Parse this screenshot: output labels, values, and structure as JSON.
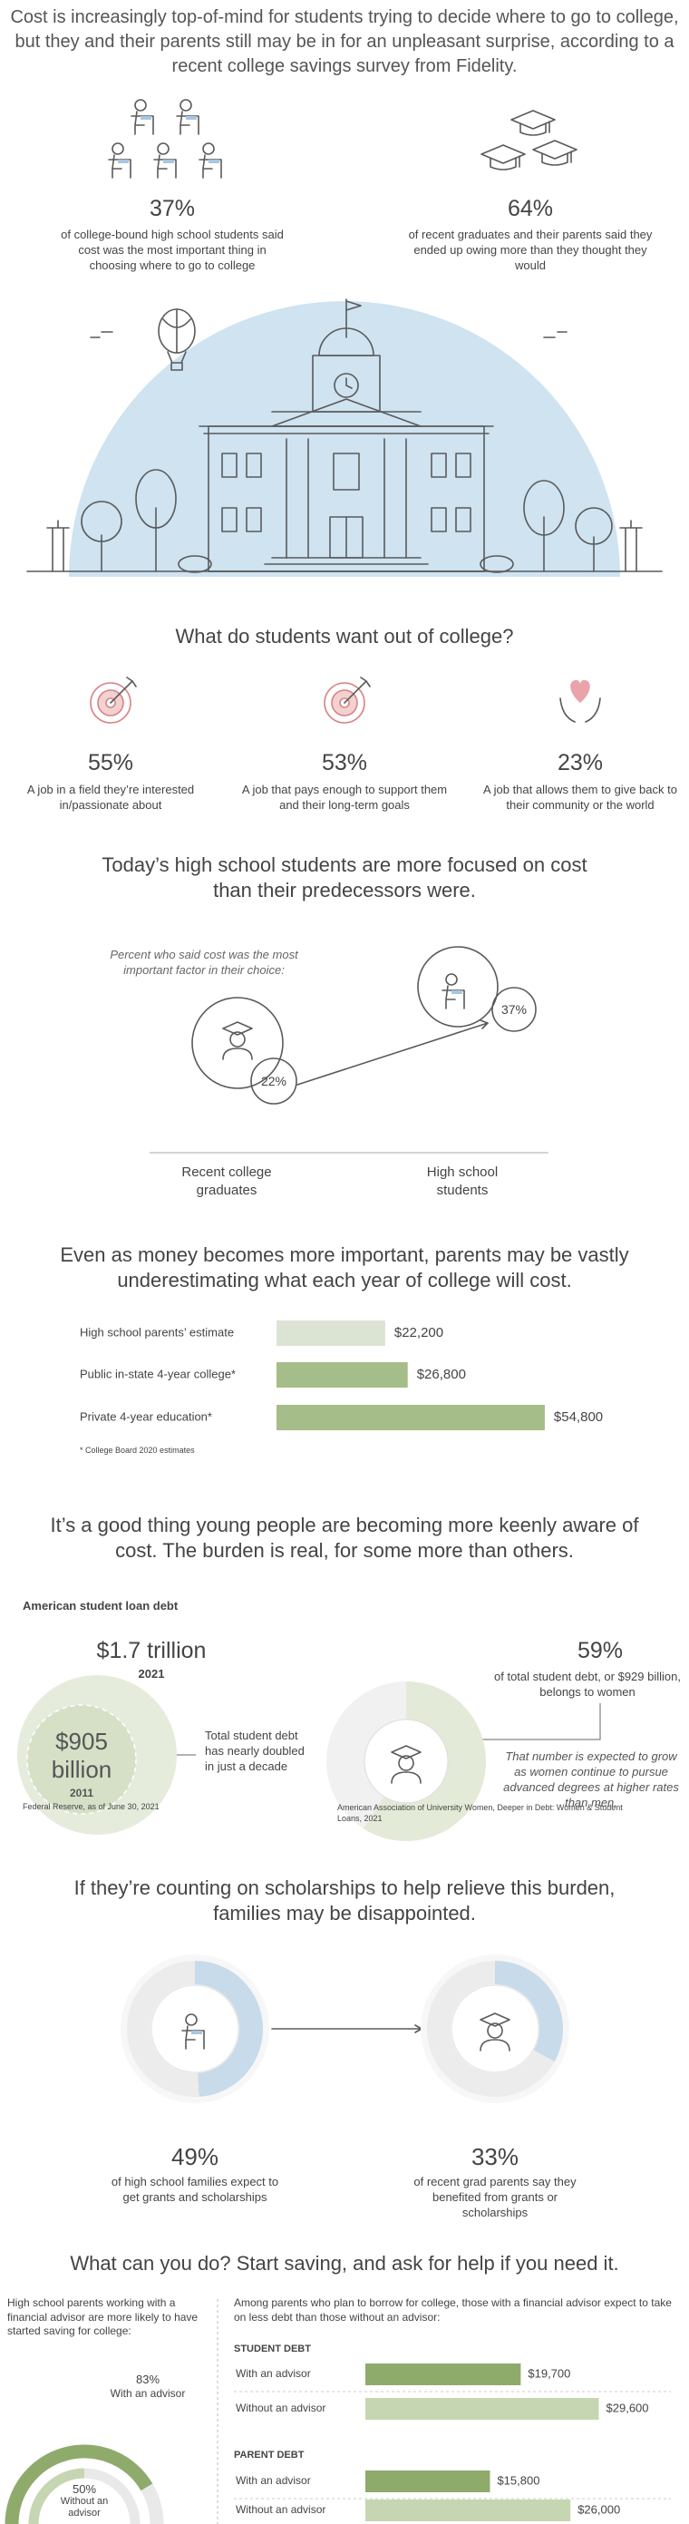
{
  "intro": "Cost is increasingly top-of-mind for students trying to decide where to go to college, but they and their parents still may be in for an unpleasant surprise, according to a recent college savings survey from Fidelity.",
  "top_stats": [
    {
      "value": "37%",
      "text": "of college-bound high school students said cost was the most important thing in choosing where to go to college"
    },
    {
      "value": "64%",
      "text": "of recent graduates and their parents said they ended up owing more than they thought they would"
    }
  ],
  "wants": {
    "title": "What do students want out of college?",
    "items": [
      {
        "value": "55%",
        "text": "A job in a field they’re interested in/passionate about"
      },
      {
        "value": "53%",
        "text": "A job that pays enough to support them and their long-term goals"
      },
      {
        "value": "23%",
        "text": "A job that allows them to give back to their community or the world"
      }
    ]
  },
  "focus": {
    "title": "Today’s high school students are more focused on cost than their predecessors were.",
    "note": "Percent who said cost was the most important factor in their choice:",
    "groups": [
      {
        "label": "Recent college graduates",
        "value": "22%"
      },
      {
        "label": "High school students",
        "value": "37%"
      }
    ]
  },
  "cost": {
    "type": "bar",
    "title": "Even as money becomes more important, parents may be vastly underestimating what each year of college will cost.",
    "categories": [
      "High school parents’ estimate",
      "Public in-state 4-year college*",
      "Private 4-year education*"
    ],
    "values": [
      22200,
      26800,
      54800
    ],
    "value_labels": [
      "$22,200",
      "$26,800",
      "$54,800"
    ],
    "colors": [
      "#dbe4d2",
      "#a5bd88",
      "#a5bd88"
    ],
    "footnote": "* College Board 2020 estimates"
  },
  "debt": {
    "title": "It’s a good thing young people are becoming more keenly aware of cost. The burden is real, for some more than others.",
    "heading": "American student loan debt",
    "total": "$1.7 trillion",
    "total_year": "2021",
    "past": "$905 billion",
    "past_year": "2011",
    "note": "Total student debt has nearly doubled in just a decade",
    "source_left": "Federal Reserve, as of June 30, 2021",
    "women": {
      "type": "pie",
      "value": 59,
      "value_label": "59%",
      "color": "#e3ebd8"
    },
    "women_text": "of total student debt, or $929 billion, belongs to women",
    "women_note": "That number is expected to grow as women continue to pursue advanced degrees at higher rates than men.",
    "source_right": "American Association of University Women, Deeper in Debt: Women & Student Loans, 2021"
  },
  "scholarships": {
    "type": "donut",
    "title": "If they’re counting on scholarships to help relieve this burden, families may be disappointed.",
    "values": [
      49,
      33
    ],
    "value_labels": [
      "49%",
      "33%"
    ],
    "color": "#c8dbea",
    "texts": [
      "of high school families expect to get grants and scholarships",
      "of recent grad parents say they benefited from grants or scholarships"
    ]
  },
  "advice": {
    "title": "What can you do? Start saving, and ask for help if you need it.",
    "left_text": "High school parents working with a financial advisor are more likely to have started saving for college:",
    "gauge": {
      "type": "gauge",
      "categories": [
        "With an advisor",
        "Without an advisor"
      ],
      "values": [
        83,
        50
      ],
      "value_labels": [
        "83%",
        "50%"
      ],
      "colors": [
        "#8fab6c",
        "#c6d6b3"
      ]
    },
    "right_text": "Among parents who plan to borrow for college, those with a financial advisor expect to take on less debt than those without an advisor:",
    "type": "bar",
    "groups": [
      {
        "name": "STUDENT DEBT",
        "categories": [
          "With an advisor",
          "Without an advisor"
        ],
        "values": [
          19700,
          29600
        ],
        "value_labels": [
          "$19,700",
          "$29,600"
        ]
      },
      {
        "name": "PARENT DEBT",
        "categories": [
          "With an advisor",
          "Without an advisor"
        ],
        "values": [
          15800,
          26000
        ],
        "value_labels": [
          "$15,800",
          "$26,000"
        ]
      }
    ],
    "colors": [
      "#8fab6c",
      "#c6d6b3"
    ]
  }
}
